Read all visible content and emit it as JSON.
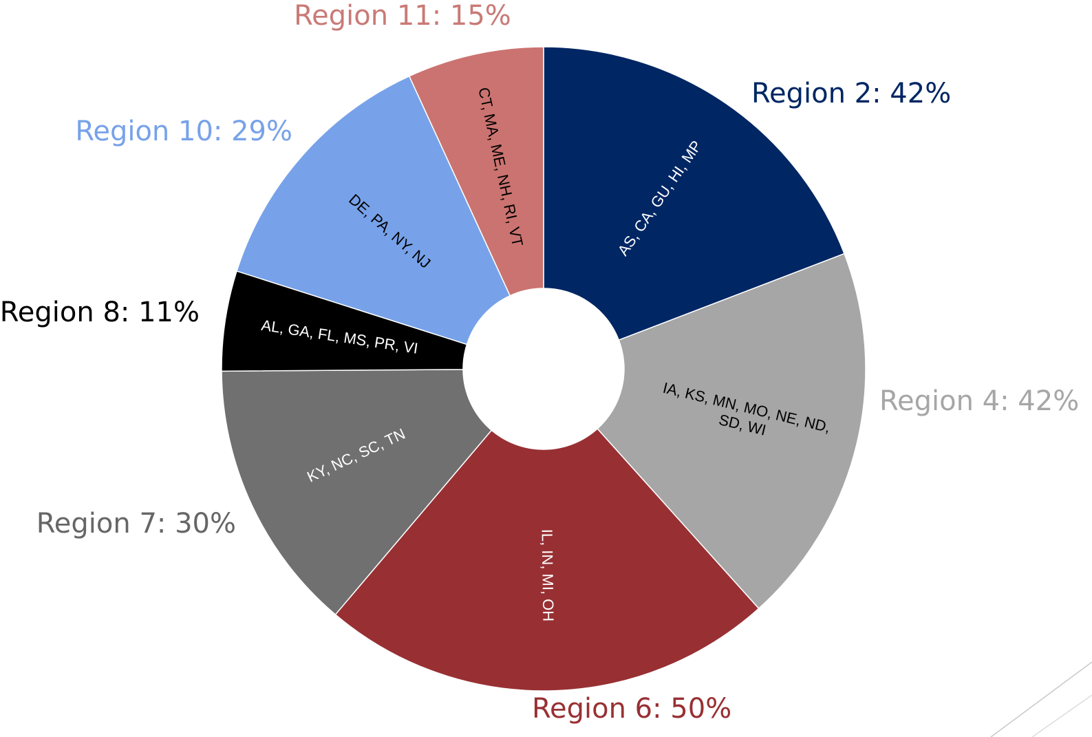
{
  "chart_data": {
    "type": "donut",
    "categories": [
      [
        "AS, CA, GU, HI, MP"
      ],
      [
        "IA, KS, MN, MO, NE, ND,",
        "SD, WI"
      ],
      [
        "IL, IN, MI, OH"
      ],
      [
        "KY, NC, SC, TN"
      ],
      [
        "AL, GA, FL, MS, PR, VI"
      ],
      [
        "DE, PA, NY, NJ"
      ],
      [
        "CT, MA, ME, NH, RI, VT"
      ]
    ],
    "values": [
      42,
      42,
      50,
      30,
      11,
      29,
      15
    ],
    "value_labels": [
      "Region 2: 42%",
      "Region 4: 42%",
      "Region 6: 50%",
      "Region 7: 30%",
      "Region 8: 11%",
      "Region 10: 29%",
      "Region 11: 15%"
    ],
    "colors": [
      "#002663",
      "#a6a6a6",
      "#983033",
      "#707070",
      "#000000",
      "#77a2e9",
      "#cb7370"
    ],
    "label_colors": [
      "#002663",
      "#a6a6a6",
      "#983033",
      "#666666",
      "#000000",
      "#77a2e9",
      "#c97a76"
    ],
    "inner_text_colors": [
      "#ffffff",
      "#000000",
      "#ffffff",
      "#ffffff",
      "#ffffff",
      "#000000",
      "#000000"
    ]
  }
}
